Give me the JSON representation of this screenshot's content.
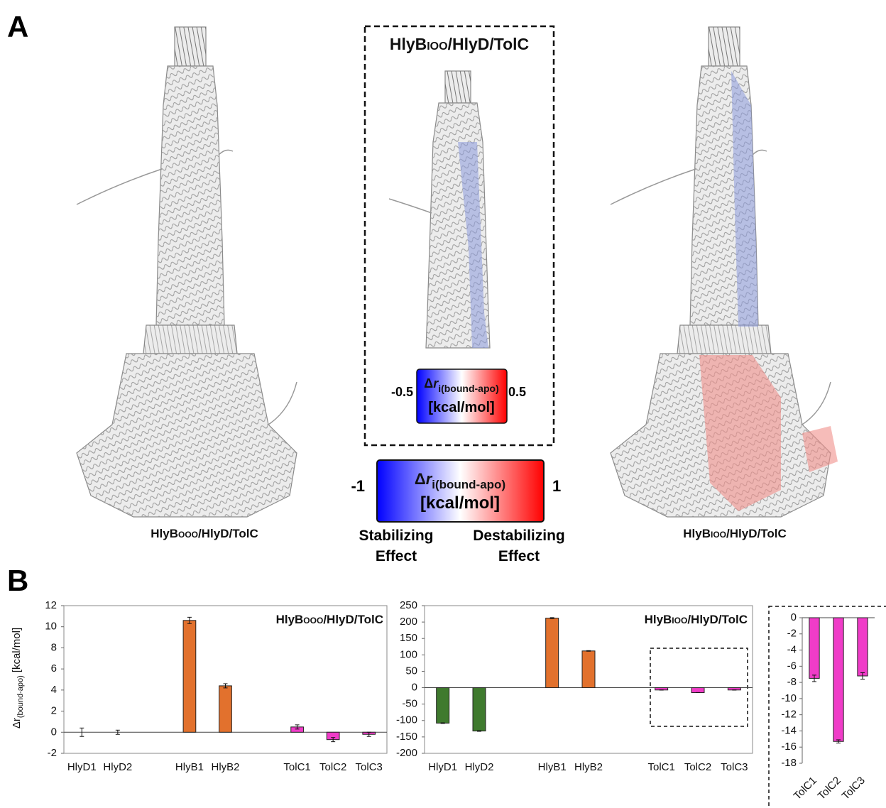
{
  "panel_a": {
    "label": "A",
    "box_title": {
      "base": "HlyB",
      "sub": "IOO",
      "rest": "/HlyD/TolC"
    },
    "caption_left": {
      "base": "HlyB",
      "sub": "OOO",
      "rest": "/HlyD/TolC"
    },
    "caption_right": {
      "base": "HlyB",
      "sub": "IOO",
      "rest": "/HlyD/TolC"
    },
    "colorbar_small": {
      "min": -0.5,
      "max": 0.5,
      "delta": "Δ",
      "var": "r",
      "sub": "i(bound-apo)",
      "unit": "[kcal/mol]"
    },
    "colorbar_large": {
      "min": -1,
      "max": 1,
      "delta": "Δ",
      "var": "r",
      "sub": "i(bound-apo)",
      "unit": "[kcal/mol]"
    },
    "stabilizing": [
      "Stabilizing",
      "Effect"
    ],
    "destabilizing": [
      "Destabilizing",
      "Effect"
    ]
  },
  "panel_b_label": "B",
  "chart_data": [
    {
      "type": "bar",
      "annotation": {
        "base": "HlyB",
        "sub": "OOO",
        "rest": "/HlyD/TolC"
      },
      "y_label": {
        "main": "Δr",
        "sub": "(bound-apo)",
        "unit": "[kcal/mol]"
      },
      "categories": [
        "HlyD1",
        "HlyD2",
        null,
        "HlyB1",
        "HlyB2",
        null,
        "TolC1",
        "TolC2",
        "TolC3"
      ],
      "values": [
        0,
        0,
        null,
        10.6,
        4.4,
        null,
        0.5,
        -0.7,
        -0.2
      ],
      "errors": [
        0.4,
        0.2,
        null,
        0.3,
        0.2,
        null,
        0.2,
        0.2,
        0.2
      ],
      "colors": [
        "#3f7a2e",
        "#3f7a2e",
        null,
        "#e2712d",
        "#e2712d",
        null,
        "#f03cc8",
        "#f03cc8",
        "#f03cc8"
      ],
      "ylim": [
        -2,
        12
      ],
      "yticks": [
        -2,
        0,
        2,
        4,
        6,
        8,
        10,
        12
      ],
      "grid": false
    },
    {
      "type": "bar",
      "annotation": {
        "base": "HlyB",
        "sub": "IOO",
        "rest": "/HlyD/TolC"
      },
      "categories": [
        "HlyD1",
        "HlyD2",
        null,
        "HlyB1",
        "HlyB2",
        null,
        "TolC1",
        "TolC2",
        "TolC3"
      ],
      "values": [
        -108,
        -132,
        null,
        212,
        112,
        null,
        -7,
        -15,
        -7
      ],
      "errors": [
        1,
        1,
        null,
        1.5,
        1,
        null,
        0.4,
        0.2,
        0.4
      ],
      "colors": [
        "#3f7a2e",
        "#3f7a2e",
        null,
        "#e2712d",
        "#e2712d",
        null,
        "#f03cc8",
        "#f03cc8",
        "#f03cc8"
      ],
      "ylim": [
        -200,
        250
      ],
      "yticks": [
        -200,
        -150,
        -100,
        -50,
        0,
        50,
        100,
        150,
        200,
        250
      ],
      "grid": false
    },
    {
      "type": "bar",
      "categories": [
        "TolC1",
        "TolC2",
        "TolC3"
      ],
      "values": [
        -7.5,
        -15.3,
        -7.2
      ],
      "errors": [
        0.4,
        0.2,
        0.4
      ],
      "colors": [
        "#f03cc8",
        "#f03cc8",
        "#f03cc8"
      ],
      "ylim": [
        -18,
        0
      ],
      "yticks": [
        0,
        -2,
        -4,
        -6,
        -8,
        -10,
        -12,
        -14,
        -16,
        -18
      ],
      "grid": false
    }
  ]
}
